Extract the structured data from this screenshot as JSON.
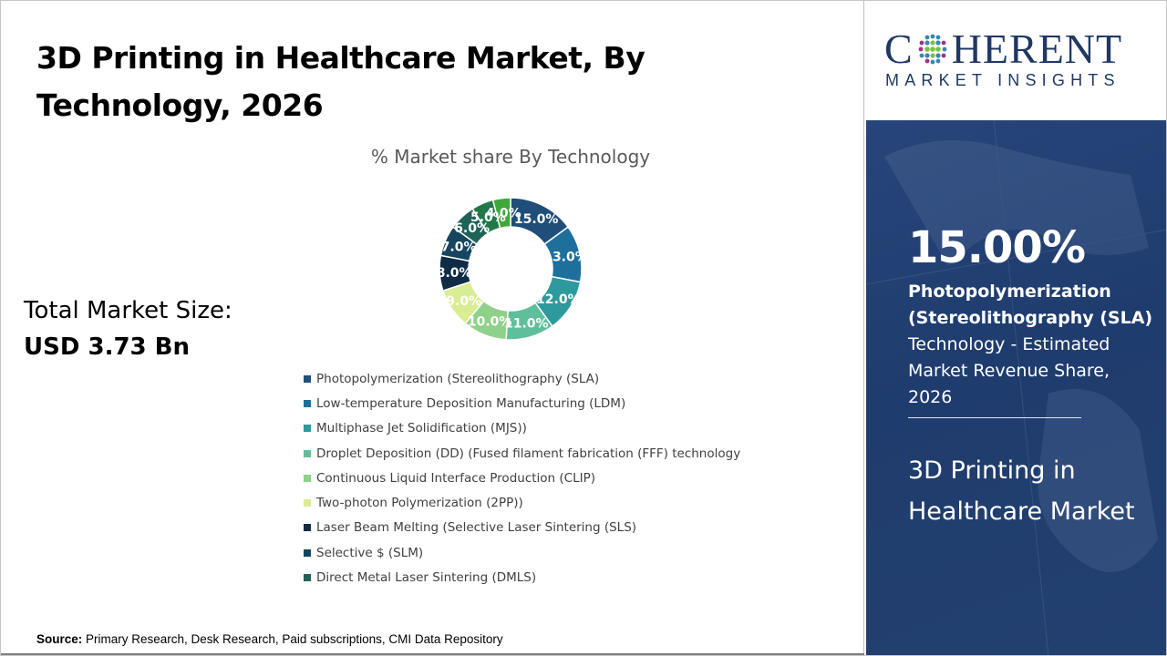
{
  "header": {
    "title": "3D Printing in Healthcare Market, By Technology, 2026"
  },
  "summary": {
    "total_label": "Total Market Size:",
    "total_value": "USD 3.73 Bn"
  },
  "logo": {
    "top_text_left": "C",
    "top_text_right": "HERENT",
    "bottom_text": "MARKET INSIGHTS"
  },
  "panel": {
    "highlight_value": "15.00%",
    "highlight_segment_line1": "Photopolymerization",
    "highlight_segment_line2": "(Stereolithography (SLA)",
    "highlight_desc": "Technology - Estimated Market Revenue Share, 2026",
    "market_name": "3D Printing in Healthcare Market"
  },
  "footer": {
    "source_label": "Source:",
    "source_text": " Primary Research, Desk Research, Paid subscriptions, CMI Data Repository"
  },
  "chart_data": {
    "type": "pie",
    "subtype": "donut",
    "title": "% Market share By Technology",
    "categories": [
      "Photopolymerization (Stereolithography (SLA)",
      "Low-temperature Deposition Manufacturing (LDM)",
      "Multiphase Jet Solidification (MJS))",
      "Droplet Deposition (DD) (Fused filament fabrication (FFF) technology",
      "Continuous Liquid Interface Production (CLIP)",
      "Two-photon Polymerization (2PP))",
      "Laser Beam Melting (Selective Laser Sintering (SLS)",
      "Selective $ (SLM)",
      "Direct Metal Laser Sintering (DMLS)",
      "",
      ""
    ],
    "values": [
      15.0,
      13.0,
      12.0,
      11.0,
      10.0,
      9.0,
      8.0,
      7.0,
      6.0,
      5.0,
      4.0
    ],
    "data_labels": [
      "15.0%",
      "13.0%",
      "12.0%",
      "11.0%",
      "10.0%",
      "9.0%",
      "8.0%",
      "7.0%",
      "6.0%",
      "5.0%",
      "4.0%"
    ],
    "colors": [
      "#1f4e79",
      "#1f6f9c",
      "#2e9a9e",
      "#5fbf9a",
      "#8fd18a",
      "#d9ed92",
      "#0f2c47",
      "#16465f",
      "#1f6358",
      "#23784a",
      "#3fa83a"
    ],
    "legend_position": "bottom",
    "legend_entries": [
      "Photopolymerization (Stereolithography (SLA)",
      "Low-temperature Deposition Manufacturing (LDM)",
      "Multiphase Jet Solidification (MJS))",
      "Droplet Deposition (DD) (Fused filament fabrication (FFF) technology",
      "Continuous Liquid Interface Production (CLIP)",
      "Two-photon Polymerization (2PP))",
      "Laser Beam Melting (Selective Laser Sintering (SLS)",
      "Selective $ (SLM)",
      "Direct Metal Laser Sintering (DMLS)"
    ]
  }
}
